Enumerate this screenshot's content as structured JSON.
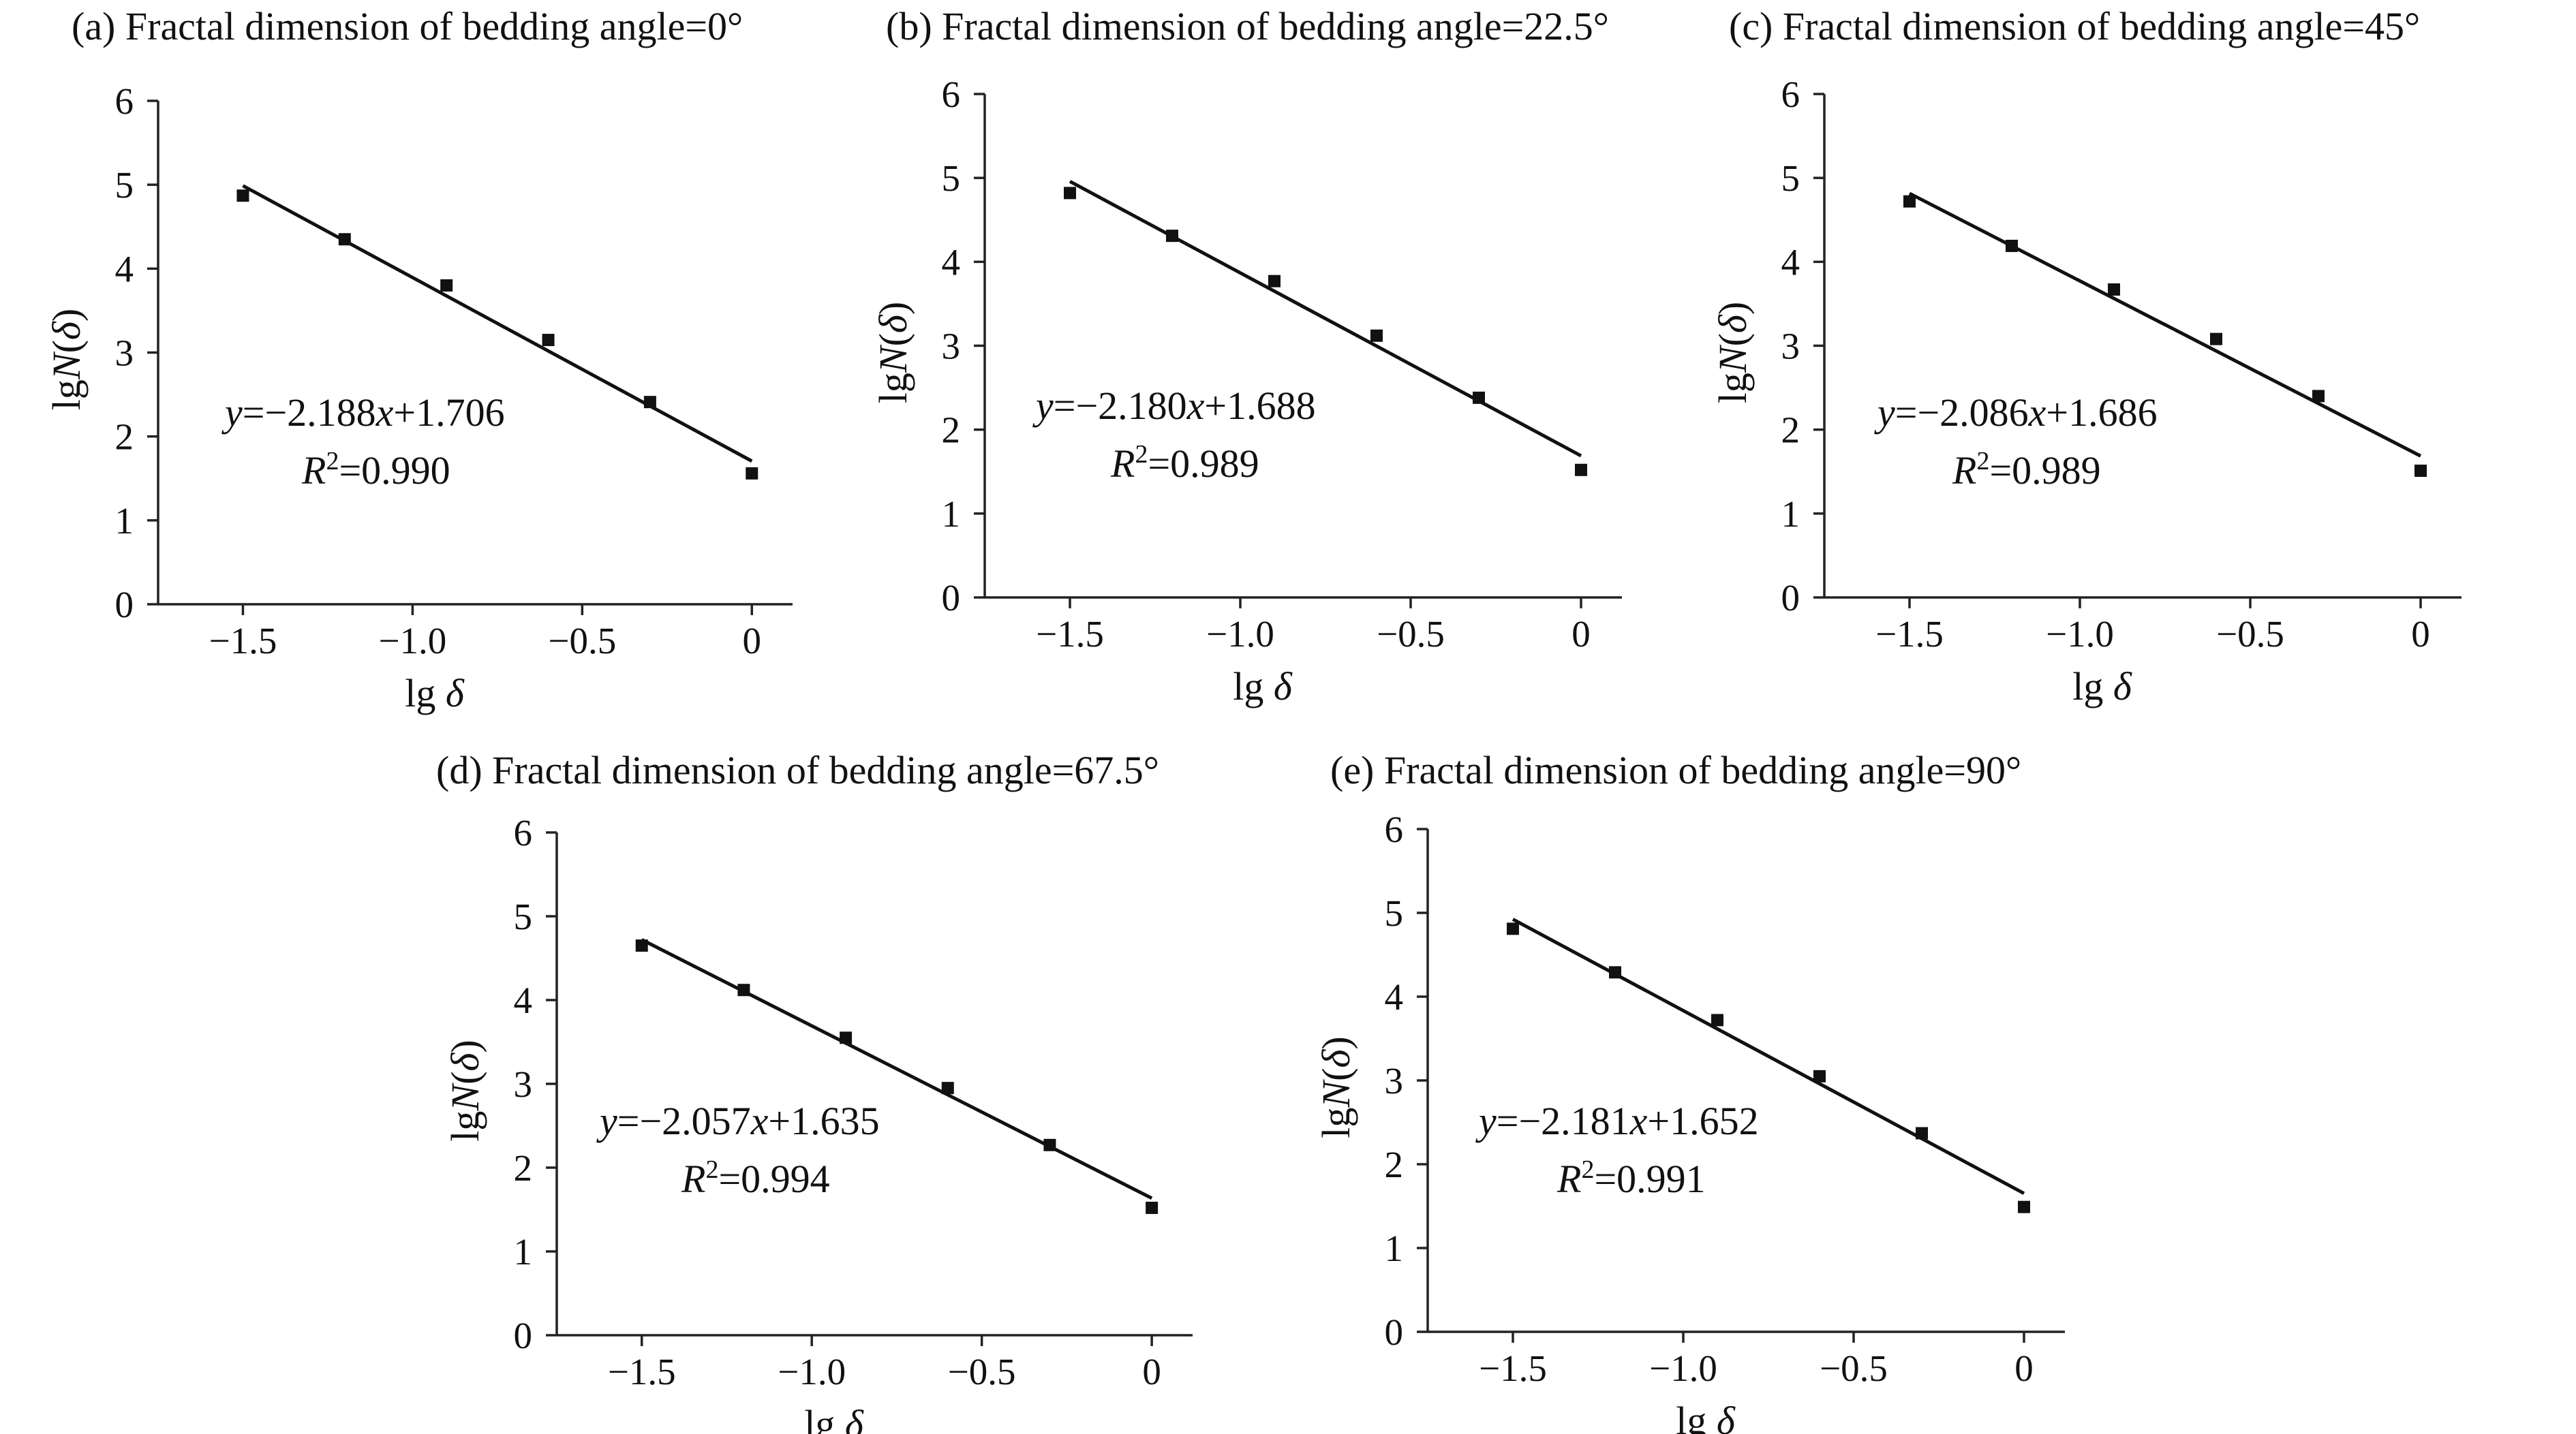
{
  "chart_data": [
    {
      "panel": "a",
      "type": "scatter",
      "title": "(a) Fractal dimension of bedding angle=0°",
      "xlabel_prefix": "lg ",
      "xlabel_symbol": "δ",
      "ylabel_prefix": "lg",
      "ylabel_symbol": "N",
      "ylabel_arg": "δ",
      "x_ticks": [
        "−1.5",
        "−1.0",
        "−0.5",
        "0"
      ],
      "x_tick_values": [
        -1.5,
        -1.0,
        -0.5,
        0
      ],
      "y_ticks": [
        "0",
        "1",
        "2",
        "3",
        "4",
        "5",
        "6"
      ],
      "y_tick_values": [
        0,
        1,
        2,
        3,
        4,
        5,
        6
      ],
      "xlim": [
        -1.75,
        0.12
      ],
      "ylim": [
        0,
        6
      ],
      "points": {
        "x": [
          -1.5,
          -1.2,
          -0.9,
          -0.6,
          -0.3,
          0
        ],
        "y": [
          4.87,
          4.35,
          3.8,
          3.15,
          2.41,
          1.56
        ]
      },
      "fit": {
        "slope": -2.188,
        "intercept": 1.706
      },
      "equation": {
        "y": "y",
        "eq": "=−2.188",
        "x": "x",
        "rest": "+1.706"
      },
      "r2": {
        "r": "R",
        "sup": "2",
        "value": "=0.990"
      }
    },
    {
      "panel": "b",
      "type": "scatter",
      "title": "(b) Fractal dimension of bedding angle=22.5°",
      "xlabel_prefix": "lg ",
      "xlabel_symbol": "δ",
      "ylabel_prefix": "lg",
      "ylabel_symbol": "N",
      "ylabel_arg": "δ",
      "x_ticks": [
        "−1.5",
        "−1.0",
        "−0.5",
        "0"
      ],
      "x_tick_values": [
        -1.5,
        -1.0,
        -0.5,
        0
      ],
      "y_ticks": [
        "0",
        "1",
        "2",
        "3",
        "4",
        "5",
        "6"
      ],
      "y_tick_values": [
        0,
        1,
        2,
        3,
        4,
        5,
        6
      ],
      "xlim": [
        -1.75,
        0.12
      ],
      "ylim": [
        0,
        6
      ],
      "points": {
        "x": [
          -1.5,
          -1.2,
          -0.9,
          -0.6,
          -0.3,
          0
        ],
        "y": [
          4.82,
          4.31,
          3.77,
          3.12,
          2.38,
          1.52
        ]
      },
      "fit": {
        "slope": -2.18,
        "intercept": 1.688
      },
      "equation": {
        "y": "y",
        "eq": "=−2.180",
        "x": "x",
        "rest": "+1.688"
      },
      "r2": {
        "r": "R",
        "sup": "2",
        "value": "=0.989"
      }
    },
    {
      "panel": "c",
      "type": "scatter",
      "title": "(c) Fractal dimension of bedding angle=45°",
      "xlabel_prefix": "lg ",
      "xlabel_symbol": "δ",
      "ylabel_prefix": "lg",
      "ylabel_symbol": "N",
      "ylabel_arg": "δ",
      "x_ticks": [
        "−1.5",
        "−1.0",
        "−0.5",
        "0"
      ],
      "x_tick_values": [
        -1.5,
        -1.0,
        -0.5,
        0
      ],
      "y_ticks": [
        "0",
        "1",
        "2",
        "3",
        "4",
        "5",
        "6"
      ],
      "y_tick_values": [
        0,
        1,
        2,
        3,
        4,
        5,
        6
      ],
      "xlim": [
        -1.75,
        0.12
      ],
      "ylim": [
        0,
        6
      ],
      "points": {
        "x": [
          -1.5,
          -1.2,
          -0.9,
          -0.6,
          -0.3,
          0
        ],
        "y": [
          4.72,
          4.19,
          3.67,
          3.08,
          2.4,
          1.51
        ]
      },
      "fit": {
        "slope": -2.086,
        "intercept": 1.686
      },
      "equation": {
        "y": "y",
        "eq": "=−2.086",
        "x": "x",
        "rest": "+1.686"
      },
      "r2": {
        "r": "R",
        "sup": "2",
        "value": "=0.989"
      }
    },
    {
      "panel": "d",
      "type": "scatter",
      "title": "(d) Fractal dimension of bedding angle=67.5°",
      "xlabel_prefix": "lg ",
      "xlabel_symbol": "δ",
      "ylabel_prefix": "lg",
      "ylabel_symbol": "N",
      "ylabel_arg": "δ",
      "x_ticks": [
        "−1.5",
        "−1.0",
        "−0.5",
        "0"
      ],
      "x_tick_values": [
        -1.5,
        -1.0,
        -0.5,
        0
      ],
      "y_ticks": [
        "0",
        "1",
        "2",
        "3",
        "4",
        "5",
        "6"
      ],
      "y_tick_values": [
        0,
        1,
        2,
        3,
        4,
        5,
        6
      ],
      "xlim": [
        -1.75,
        0.12
      ],
      "ylim": [
        0,
        6
      ],
      "points": {
        "x": [
          -1.5,
          -1.2,
          -0.9,
          -0.6,
          -0.3,
          0
        ],
        "y": [
          4.65,
          4.12,
          3.55,
          2.95,
          2.27,
          1.52
        ]
      },
      "fit": {
        "slope": -2.057,
        "intercept": 1.635
      },
      "equation": {
        "y": "y",
        "eq": "=−2.057",
        "x": "x",
        "rest": "+1.635"
      },
      "r2": {
        "r": "R",
        "sup": "2",
        "value": "=0.994"
      }
    },
    {
      "panel": "e",
      "type": "scatter",
      "title": "(e) Fractal dimension of bedding angle=90°",
      "xlabel_prefix": "lg ",
      "xlabel_symbol": "δ",
      "ylabel_prefix": "lg",
      "ylabel_symbol": "N",
      "ylabel_arg": "δ",
      "x_ticks": [
        "−1.5",
        "−1.0",
        "−0.5",
        "0"
      ],
      "x_tick_values": [
        -1.5,
        -1.0,
        -0.5,
        0
      ],
      "y_ticks": [
        "0",
        "1",
        "2",
        "3",
        "4",
        "5",
        "6"
      ],
      "y_tick_values": [
        0,
        1,
        2,
        3,
        4,
        5,
        6
      ],
      "xlim": [
        -1.75,
        0.12
      ],
      "ylim": [
        0,
        6
      ],
      "points": {
        "x": [
          -1.5,
          -1.2,
          -0.9,
          -0.6,
          -0.3,
          0
        ],
        "y": [
          4.81,
          4.29,
          3.72,
          3.05,
          2.37,
          1.49
        ]
      },
      "fit": {
        "slope": -2.181,
        "intercept": 1.652
      },
      "equation": {
        "y": "y",
        "eq": "=−2.181",
        "x": "x",
        "rest": "+1.652"
      },
      "r2": {
        "r": "R",
        "sup": "2",
        "value": "=0.991"
      }
    }
  ]
}
